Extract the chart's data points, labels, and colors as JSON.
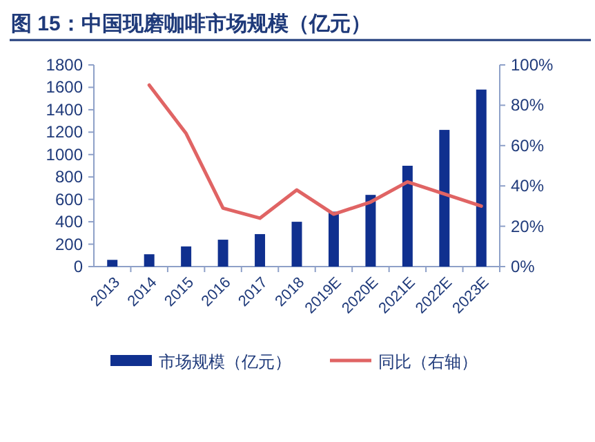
{
  "chart_data": {
    "type": "bar",
    "title": "图 15：中国现磨咖啡市场规模（亿元）",
    "categories": [
      "2013",
      "2014",
      "2015",
      "2016",
      "2017",
      "2018",
      "2019E",
      "2020E",
      "2021E",
      "2022E",
      "2023E"
    ],
    "series": [
      {
        "name": "市场规模（亿元）",
        "color": "#10308f",
        "values": [
          60,
          110,
          180,
          240,
          290,
          400,
          490,
          640,
          900,
          1220,
          1580
        ]
      },
      {
        "name": "同比（右轴）",
        "type": "line",
        "axis": "y2",
        "color": "#e06464",
        "values": [
          null,
          90,
          66,
          29,
          24,
          38,
          26,
          32,
          42,
          36,
          30
        ]
      }
    ],
    "ylim": [
      0,
      1800
    ],
    "yticks": [
      0,
      200,
      400,
      600,
      800,
      1000,
      1200,
      1400,
      1600,
      1800
    ],
    "y2lim": [
      0,
      100
    ],
    "y2ticks": [
      {
        "value": 0,
        "label": "0%"
      },
      {
        "value": 20,
        "label": "20%"
      },
      {
        "value": 40,
        "label": "40%"
      },
      {
        "value": 60,
        "label": "60%"
      },
      {
        "value": 80,
        "label": "80%"
      },
      {
        "value": 100,
        "label": "100%"
      }
    ],
    "legend": "bottom",
    "grid": false
  }
}
